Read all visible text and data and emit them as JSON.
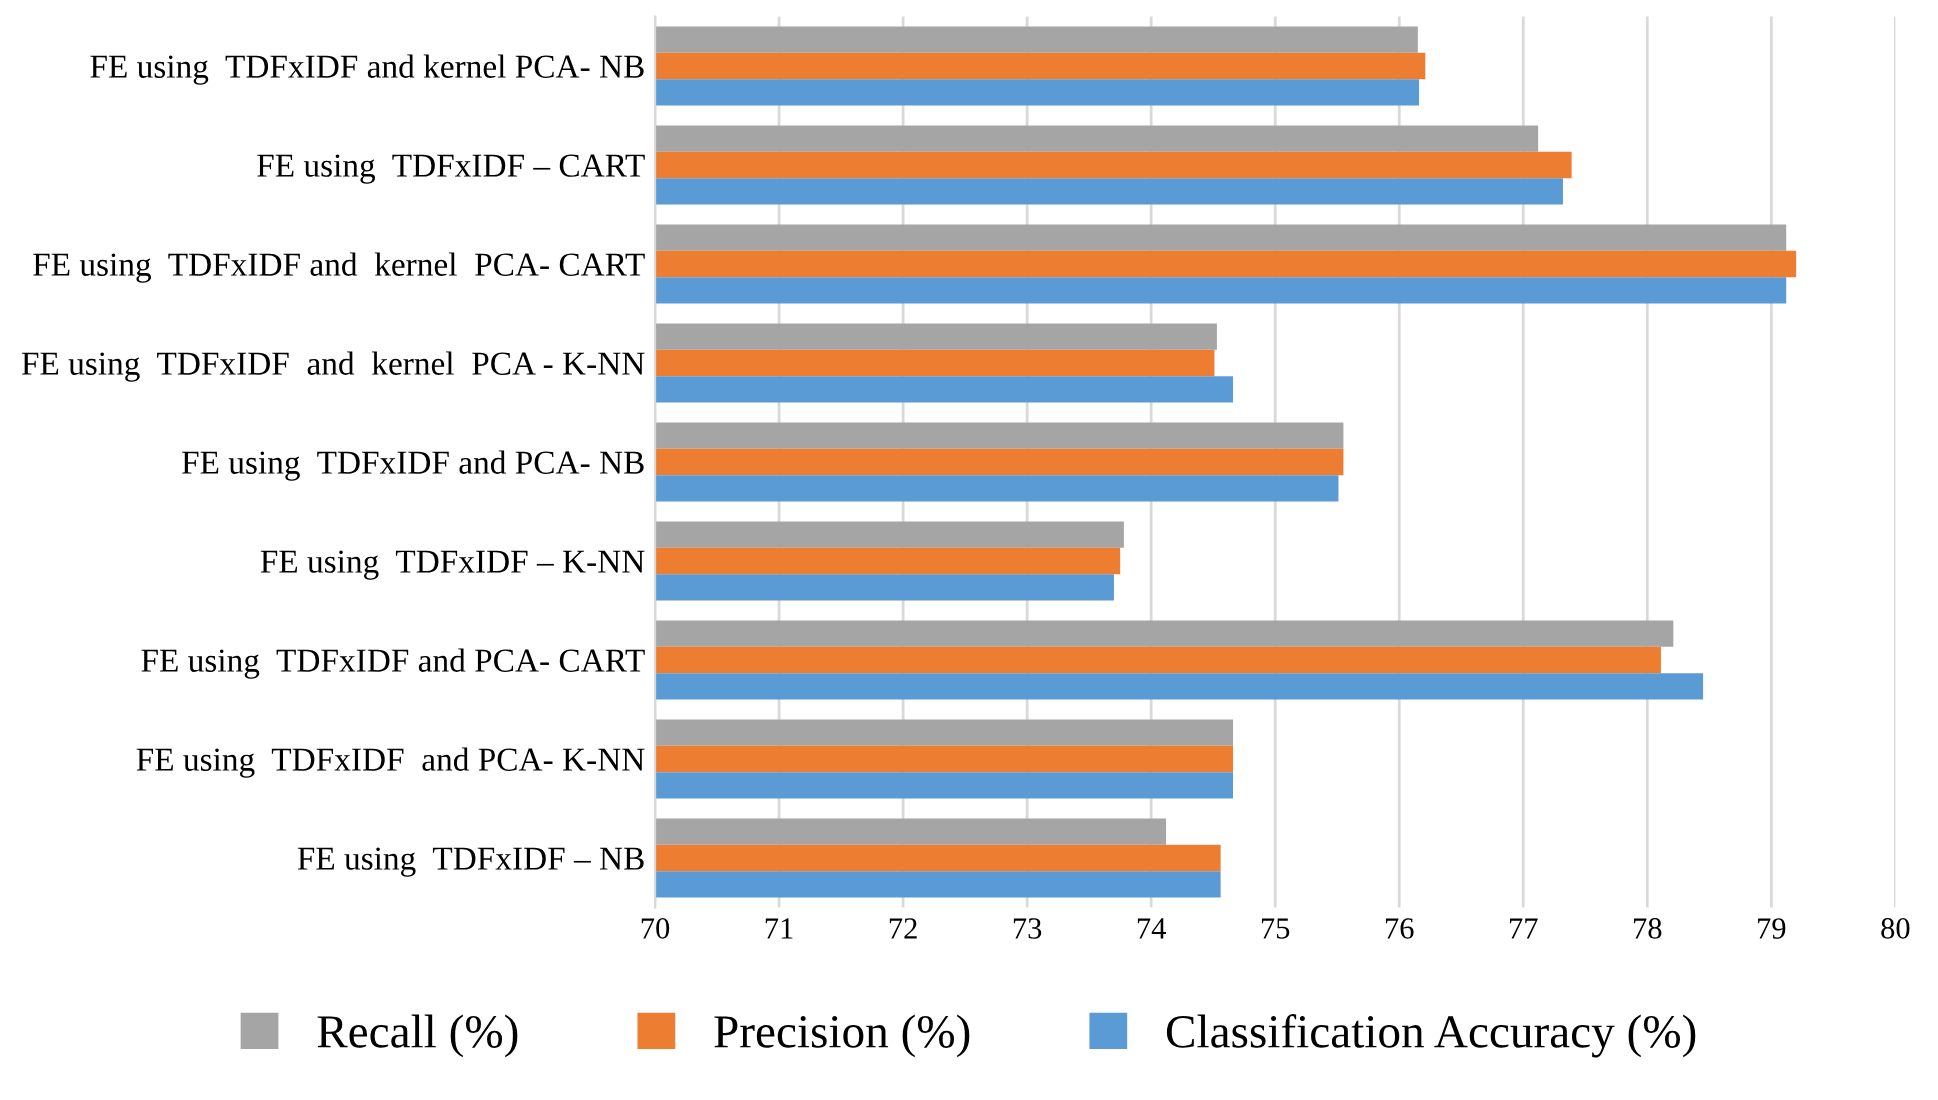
{
  "chart_data": {
    "type": "bar",
    "orientation": "horizontal",
    "categories": [
      "FE using  TDFxIDF and kernel PCA- NB",
      "FE using  TDFxIDF – CART",
      "FE using  TDFxIDF and  kernel  PCA- CART",
      "FE using  TDFxIDF  and  kernel  PCA - K-NN",
      "FE using  TDFxIDF and PCA- NB",
      "FE using  TDFxIDF – K-NN",
      "FE using  TDFxIDF and PCA- CART",
      "FE using  TDFxIDF  and PCA- K-NN",
      "FE using  TDFxIDF – NB"
    ],
    "series": [
      {
        "name": "Recall (%)",
        "color": "#a5a5a5",
        "values": [
          76.15,
          77.12,
          79.12,
          74.53,
          75.55,
          73.78,
          78.21,
          74.66,
          74.12
        ]
      },
      {
        "name": "Precision (%)",
        "color": "#ed7d31",
        "values": [
          76.21,
          77.39,
          79.2,
          74.51,
          75.55,
          73.75,
          78.11,
          74.66,
          74.56
        ]
      },
      {
        "name": "Classification Accuracy (%)",
        "color": "#5b9bd5",
        "values": [
          76.16,
          77.32,
          79.12,
          74.66,
          75.51,
          73.7,
          78.45,
          74.66,
          74.56
        ]
      }
    ],
    "xlim": [
      70,
      80
    ],
    "xticks": [
      70,
      71,
      72,
      73,
      74,
      75,
      76,
      77,
      78,
      79,
      80
    ],
    "grid": "x",
    "legend": "bottom"
  }
}
